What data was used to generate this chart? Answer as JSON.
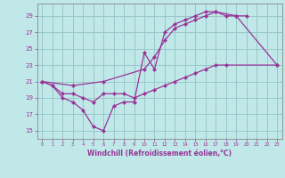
{
  "xlabel": "Windchill (Refroidissement éolien,°C)",
  "xlim": [
    -0.5,
    23.5
  ],
  "ylim": [
    14.0,
    30.5
  ],
  "xticks": [
    0,
    1,
    2,
    3,
    4,
    5,
    6,
    7,
    8,
    9,
    10,
    11,
    12,
    13,
    14,
    15,
    16,
    17,
    18,
    19,
    20,
    21,
    22,
    23
  ],
  "yticks": [
    15,
    17,
    19,
    21,
    23,
    25,
    27,
    29
  ],
  "bg_color": "#c0e8e8",
  "grid_color": "#98c8c8",
  "line_color": "#993399",
  "line1_x": [
    0,
    1,
    2,
    3,
    4,
    5,
    6,
    7,
    8,
    9,
    10,
    11,
    12,
    13,
    14,
    15,
    16,
    17,
    18,
    19,
    20
  ],
  "line1_y": [
    21.0,
    20.5,
    19.0,
    18.5,
    17.5,
    15.5,
    15.0,
    18.0,
    18.5,
    18.5,
    24.5,
    22.5,
    27.0,
    28.0,
    28.5,
    29.0,
    29.5,
    29.5,
    29.0,
    29.0,
    29.0
  ],
  "line2_x": [
    0,
    3,
    6,
    10,
    11,
    12,
    13,
    14,
    15,
    16,
    17,
    19,
    23
  ],
  "line2_y": [
    21.0,
    20.5,
    21.0,
    22.5,
    24.0,
    26.0,
    27.5,
    28.0,
    28.5,
    29.0,
    29.5,
    29.0,
    23.0
  ],
  "line3_x": [
    0,
    1,
    2,
    3,
    4,
    5,
    6,
    7,
    8,
    9,
    10,
    11,
    12,
    13,
    14,
    15,
    16,
    17,
    18,
    23
  ],
  "line3_y": [
    21.0,
    20.5,
    19.5,
    19.5,
    19.0,
    18.5,
    19.5,
    19.5,
    19.5,
    19.0,
    19.5,
    20.0,
    20.5,
    21.0,
    21.5,
    22.0,
    22.5,
    23.0,
    23.0,
    23.0
  ]
}
